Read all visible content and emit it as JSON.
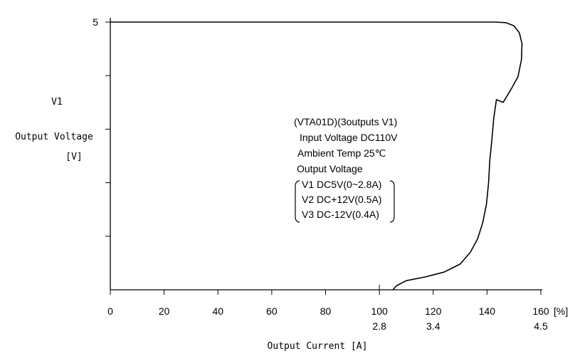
{
  "chart_data": {
    "type": "line",
    "title": "",
    "ylabel": {
      "line1": "V1",
      "line2": "Output Voltage",
      "line3": "[V]"
    },
    "xlabel": "Output Current [A]",
    "x_unit": "[%]",
    "xlim": [
      0,
      160
    ],
    "x_ticks": [
      0,
      20,
      40,
      60,
      80,
      100,
      120,
      140,
      160
    ],
    "x_secondary_ticks": [
      {
        "at": 100,
        "label": "2.8"
      },
      {
        "at": 120,
        "label": "3.4"
      },
      {
        "at": 160,
        "label": "4.5"
      }
    ],
    "ylim": [
      0,
      5
    ],
    "y_ticks": [
      1,
      2,
      3,
      4,
      5
    ],
    "y_tick_labels": [
      {
        "at": 5,
        "label": "5"
      }
    ],
    "annotation": {
      "line1": "(VTA01D)(3outputs V1)",
      "line2": "Input Voltage DC110V",
      "line3": "Ambient Temp  25℃",
      "line4": "Output Voltage",
      "line5": "V1 DC5V(0~2.8A)",
      "line6": "V2 DC+12V(0.5A)",
      "line7": "V3 DC-12V(0.4A)"
    },
    "series": [
      {
        "points": [
          [
            0,
            5.0
          ],
          [
            143,
            5.0
          ],
          [
            147,
            4.99
          ],
          [
            150,
            4.93
          ],
          [
            152,
            4.8
          ],
          [
            153,
            4.6
          ],
          [
            152.8,
            4.3
          ],
          [
            151.5,
            3.98
          ],
          [
            149,
            3.75
          ],
          [
            146,
            3.5
          ],
          [
            143.5,
            3.55
          ],
          [
            142.5,
            3.2
          ],
          [
            141.8,
            2.8
          ],
          [
            141,
            2.4
          ],
          [
            140.6,
            2.0
          ],
          [
            139.8,
            1.6
          ],
          [
            138.4,
            1.25
          ],
          [
            136.5,
            0.95
          ],
          [
            133.8,
            0.7
          ],
          [
            130,
            0.48
          ],
          [
            124,
            0.33
          ],
          [
            117,
            0.24
          ],
          [
            110,
            0.17
          ],
          [
            106.5,
            0.08
          ],
          [
            105,
            0.0
          ]
        ]
      }
    ]
  }
}
